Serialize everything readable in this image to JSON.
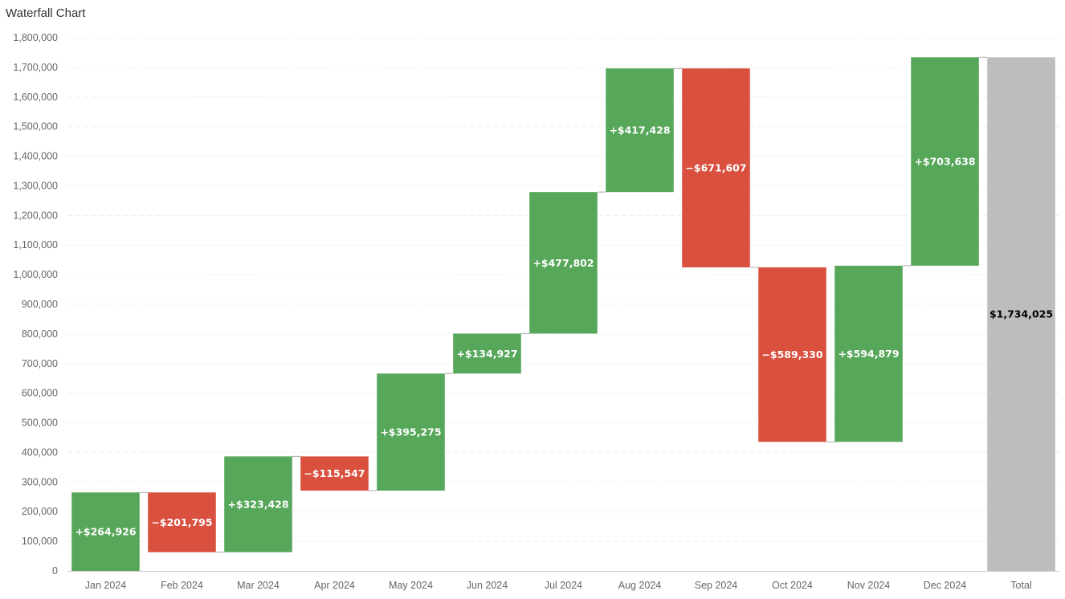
{
  "chart_data": {
    "type": "waterfall",
    "title": "Waterfall Chart",
    "xlabel": "",
    "ylabel": "",
    "ylim": [
      0,
      1800000
    ],
    "yticks": [
      0,
      100000,
      200000,
      300000,
      400000,
      500000,
      600000,
      700000,
      800000,
      900000,
      1000000,
      1100000,
      1200000,
      1300000,
      1400000,
      1500000,
      1600000,
      1700000,
      1800000
    ],
    "ytick_labels": [
      "0",
      "100,000",
      "200,000",
      "300,000",
      "400,000",
      "500,000",
      "600,000",
      "700,000",
      "800,000",
      "900,000",
      "1,000,000",
      "1,100,000",
      "1,200,000",
      "1,300,000",
      "1,400,000",
      "1,500,000",
      "1,600,000",
      "1,700,000",
      "1,800,000"
    ],
    "grid": true,
    "categories": [
      "Jan 2024",
      "Feb 2024",
      "Mar 2024",
      "Apr 2024",
      "May 2024",
      "Jun 2024",
      "Jul 2024",
      "Aug 2024",
      "Sep 2024",
      "Oct 2024",
      "Nov 2024",
      "Dec 2024",
      "Total"
    ],
    "values": [
      264926,
      -201795,
      323428,
      -115547,
      395275,
      134927,
      477802,
      417428,
      -671607,
      -589330,
      594879,
      703638,
      1734025
    ],
    "is_total": [
      false,
      false,
      false,
      false,
      false,
      false,
      false,
      false,
      false,
      false,
      false,
      false,
      true
    ],
    "data_labels": [
      "+$264,926",
      "−$201,795",
      "+$323,428",
      "−$115,547",
      "+$395,275",
      "+$134,927",
      "+$477,802",
      "+$417,428",
      "−$671,607",
      "−$589,330",
      "+$594,879",
      "+$703,638",
      "$1,734,025"
    ],
    "colors": {
      "increase": "#57a75a",
      "decrease": "#d9503f",
      "total": "#bdbdbd",
      "increase_label": "#ffffff",
      "decrease_label": "#ffffff",
      "total_label": "#000000",
      "grid": "#efefef",
      "axis": "#cccccc",
      "connector": "#aaaaaa"
    }
  }
}
